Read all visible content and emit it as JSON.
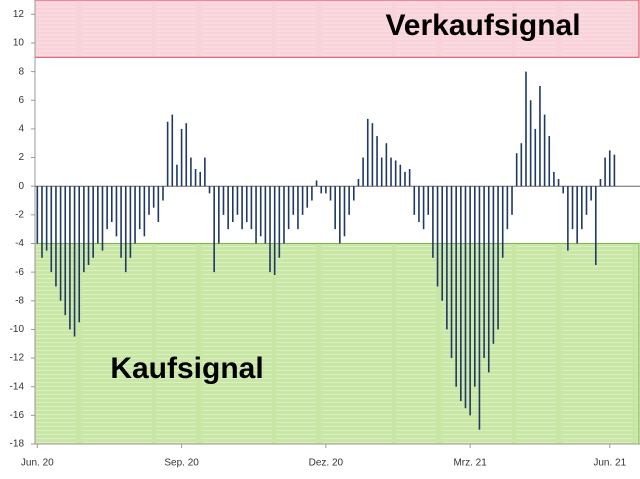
{
  "chart_data": {
    "type": "bar",
    "categories": [
      "Jun. 20",
      null,
      null,
      null,
      null,
      null,
      null,
      null,
      null,
      null,
      null,
      null,
      null,
      null,
      null,
      null,
      null,
      null,
      null,
      null,
      null,
      null,
      null,
      null,
      null,
      null,
      null,
      null,
      null,
      null,
      null,
      "Sep. 20",
      null,
      null,
      null,
      null,
      null,
      null,
      null,
      null,
      null,
      null,
      null,
      null,
      null,
      null,
      null,
      null,
      null,
      null,
      null,
      null,
      null,
      null,
      null,
      null,
      null,
      null,
      null,
      null,
      null,
      null,
      "Dez. 20",
      null,
      null,
      null,
      null,
      null,
      null,
      null,
      null,
      null,
      null,
      null,
      null,
      null,
      null,
      null,
      null,
      null,
      null,
      null,
      null,
      null,
      null,
      null,
      null,
      null,
      null,
      null,
      null,
      null,
      null,
      "Mrz. 21",
      null,
      null,
      null,
      null,
      null,
      null,
      null,
      null,
      null,
      null,
      null,
      null,
      null,
      null,
      null,
      null,
      null,
      null,
      null,
      null,
      null,
      null,
      null,
      null,
      null,
      null,
      null,
      null,
      null,
      "Jun. 21",
      null,
      null,
      null,
      null,
      null,
      null
    ],
    "values": [
      -4,
      -5,
      -4.5,
      -6,
      -7,
      -8,
      -9,
      -10,
      -10.5,
      -9.5,
      -6,
      -5.5,
      -5,
      -4,
      -4.5,
      -3,
      -2.5,
      -3.5,
      -5,
      -6,
      -5,
      -4,
      -3,
      -3.5,
      -2,
      -1.5,
      -2.5,
      -1,
      4.5,
      5,
      1.5,
      4,
      4.4,
      2,
      1.2,
      1,
      2,
      -0.5,
      -6,
      -4,
      -2,
      -3,
      -2.5,
      -2,
      -3,
      -2.5,
      -3,
      -4,
      -3.5,
      -4,
      -6,
      -6.2,
      -5,
      -4,
      -3,
      -2,
      -3,
      -2,
      -1.5,
      -1,
      0.4,
      -0.5,
      -0.5,
      -1,
      -3,
      -4,
      -3.5,
      -2,
      -1,
      0.5,
      2,
      4.7,
      4.4,
      3.5,
      2,
      3,
      2,
      1.8,
      1.5,
      1,
      1.2,
      -2,
      -2.5,
      -3,
      -2,
      -5,
      -7,
      -8,
      -10,
      -12,
      -14,
      -15,
      -15.5,
      -16,
      -14,
      -17,
      -12,
      -13,
      -11,
      -10,
      -5,
      -3,
      -2,
      2.3,
      3,
      8,
      6,
      4,
      7,
      5,
      3.5,
      1,
      0.5,
      -0.5,
      -4.5,
      -3,
      -4,
      -3,
      -2,
      -1,
      -5.5,
      0.5,
      2,
      2.5,
      2.2,
      null,
      null,
      null,
      null,
      null
    ],
    "color": "#1f3864",
    "ylim": [
      -18,
      13
    ],
    "yticks": [
      -18,
      -16,
      -14,
      -12,
      -10,
      -8,
      -6,
      -4,
      -2,
      0,
      2,
      4,
      6,
      8,
      10,
      12
    ],
    "zones": [
      {
        "label": "Verkaufsignal",
        "from": 9,
        "to": 13,
        "color": "#f9d3da",
        "border": "#e0405a"
      },
      {
        "label": "Kaufsignal",
        "from": -18,
        "to": -4,
        "color": "#c9e7a4",
        "border": "#7ab648"
      }
    ]
  }
}
